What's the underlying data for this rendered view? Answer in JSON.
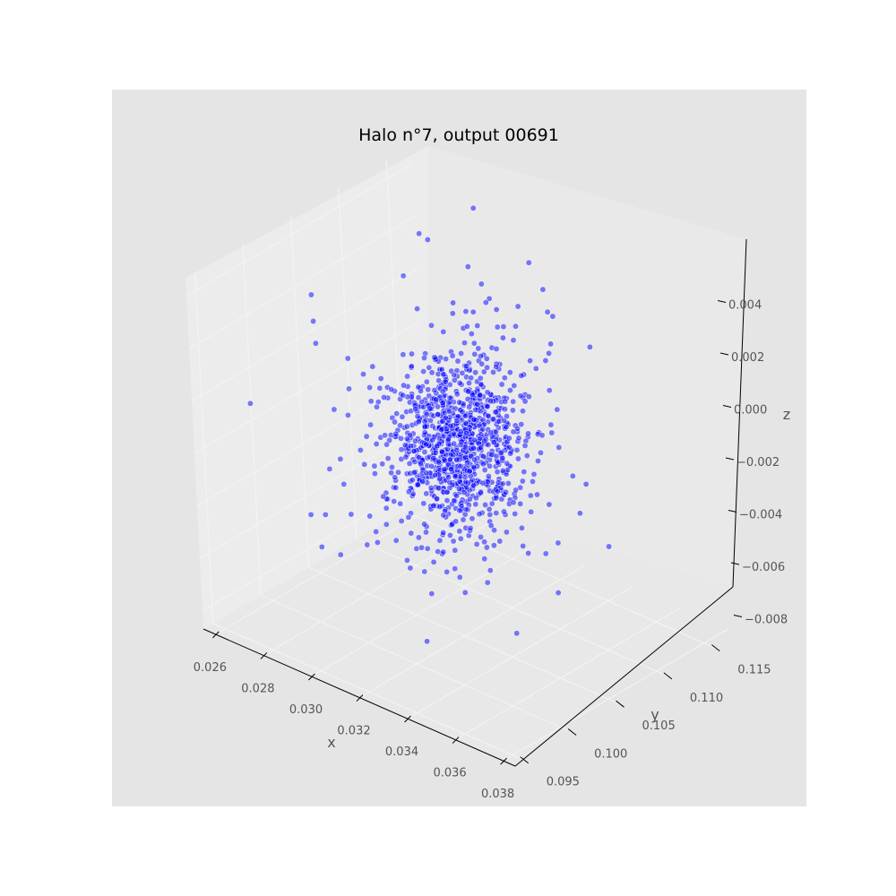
{
  "chart_data": {
    "type": "scatter",
    "projection": "3d",
    "title": "Halo n°7, output 00691",
    "xlabel": "x",
    "ylabel": "y",
    "zlabel": "z",
    "xlim": [
      0.0255,
      0.0385
    ],
    "ylim": [
      0.094,
      0.1175
    ],
    "zlim": [
      -0.0087,
      0.0047
    ],
    "x_ticks": [
      "0.026",
      "0.028",
      "0.030",
      "0.032",
      "0.034",
      "0.036",
      "0.038"
    ],
    "y_ticks": [
      "0.095",
      "0.100",
      "0.105",
      "0.110",
      "0.115"
    ],
    "z_ticks": [
      "0.004",
      "0.002",
      "0.000",
      "−0.002",
      "−0.004",
      "−0.006",
      "−0.008"
    ],
    "grid": true,
    "legend": "none",
    "point_color": "#0000ff",
    "point_alpha": 0.5,
    "distribution": {
      "count": 1100,
      "center": {
        "x": 0.0318,
        "y": 0.1058,
        "z": -0.0016
      },
      "spread": {
        "x": 0.0009,
        "y": 0.0022,
        "z": 0.0014
      },
      "halo_count": 300,
      "halo_spread_scale": 1.9
    },
    "background_color": "#e5e5e5",
    "pane_color": "#ebebeb",
    "grid_color": "#ffffff"
  }
}
